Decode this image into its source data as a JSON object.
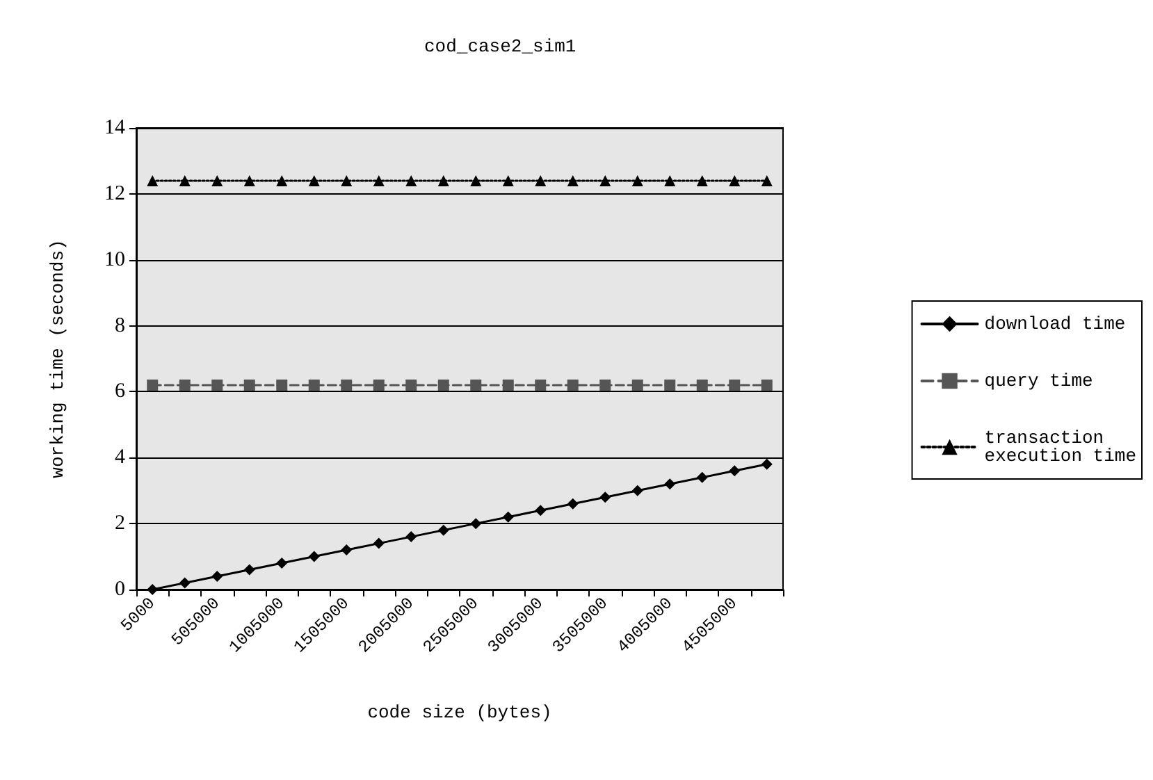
{
  "chart_data": {
    "type": "line",
    "title": "cod_case2_sim1",
    "xlabel": "code size (bytes)",
    "ylabel": "working time (seconds)",
    "categories": [
      "5000",
      null,
      "505000",
      null,
      "1005000",
      null,
      "1505000",
      null,
      "2005000",
      null,
      "2505000",
      null,
      "3005000",
      null,
      "3505000",
      null,
      "4005000",
      null,
      "4505000",
      null
    ],
    "series": [
      {
        "name": "download time",
        "color": "#000000",
        "marker": "diamond",
        "line_style": "solid",
        "values": [
          0,
          0.2,
          0.4,
          0.6,
          0.8,
          1.0,
          1.2,
          1.4,
          1.6,
          1.8,
          2.0,
          2.2,
          2.4,
          2.6,
          2.8,
          3.0,
          3.2,
          3.4,
          3.6,
          3.8
        ]
      },
      {
        "name": "query time",
        "color": "#555555",
        "marker": "square",
        "line_style": "dashed",
        "values": [
          6.2,
          6.2,
          6.2,
          6.2,
          6.2,
          6.2,
          6.2,
          6.2,
          6.2,
          6.2,
          6.2,
          6.2,
          6.2,
          6.2,
          6.2,
          6.2,
          6.2,
          6.2,
          6.2,
          6.2
        ]
      },
      {
        "name": "transaction\nexecution time",
        "color": "#000000",
        "marker": "triangle",
        "line_style": "dotted",
        "values": [
          12.4,
          12.4,
          12.4,
          12.4,
          12.4,
          12.4,
          12.4,
          12.4,
          12.4,
          12.4,
          12.4,
          12.4,
          12.4,
          12.4,
          12.4,
          12.4,
          12.4,
          12.4,
          12.4,
          12.4
        ]
      }
    ],
    "ylim": [
      0,
      14
    ],
    "yticks": [
      0,
      2,
      4,
      6,
      8,
      10,
      12,
      14
    ],
    "grid": "y",
    "legend": "right"
  }
}
